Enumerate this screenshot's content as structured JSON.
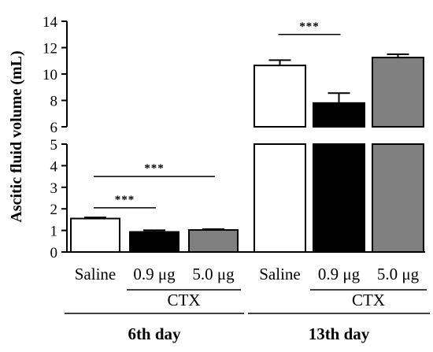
{
  "chart_data": {
    "type": "bar",
    "ylabel": "Ascitic fluid volume (mL)",
    "y_axis": {
      "broken": true,
      "lower_segment": {
        "range": [
          0,
          5
        ],
        "ticks": [
          "0",
          "1",
          "2",
          "3",
          "4",
          "5"
        ]
      },
      "upper_segment": {
        "range": [
          6,
          14
        ],
        "ticks": [
          "6",
          "8",
          "10",
          "12",
          "14"
        ]
      }
    },
    "groups": [
      {
        "title": "6th day",
        "subgroup_label": "CTX",
        "bars": [
          {
            "category": "Saline",
            "value": 1.55,
            "error": 0.05,
            "color": "#ffffff"
          },
          {
            "category": "0.9 μg",
            "value": 0.93,
            "error": 0.08,
            "color": "#000000"
          },
          {
            "category": "5.0 μg",
            "value": 1.02,
            "error": 0.04,
            "color": "#808080"
          }
        ],
        "significance": [
          {
            "from": 0,
            "to": 1,
            "label": "***",
            "y": 2.05
          },
          {
            "from": 0,
            "to": 2,
            "label": "***",
            "y": 3.5
          }
        ]
      },
      {
        "title": "13th day",
        "subgroup_label": "CTX",
        "bars": [
          {
            "category": "Saline",
            "value": 10.65,
            "error": 0.4,
            "color": "#ffffff"
          },
          {
            "category": "0.9 μg",
            "value": 7.8,
            "error": 0.75,
            "color": "#000000"
          },
          {
            "category": "5.0 μg",
            "value": 11.25,
            "error": 0.25,
            "color": "#808080"
          }
        ],
        "significance": [
          {
            "from": 0,
            "to": 1,
            "label": "***",
            "y": 13.0
          }
        ]
      }
    ]
  }
}
